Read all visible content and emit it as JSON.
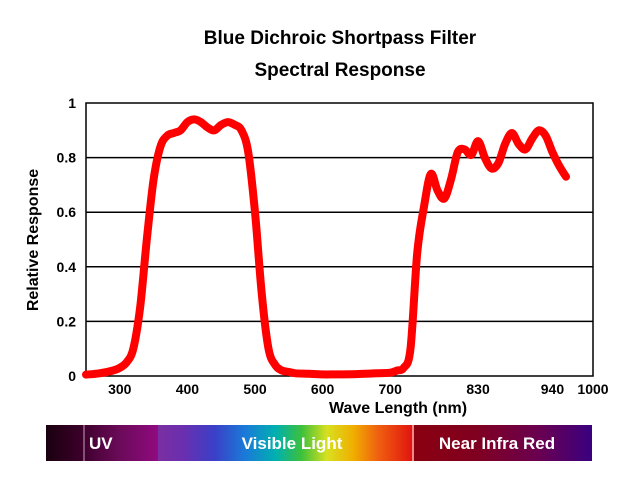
{
  "chart_data": {
    "type": "line",
    "title": [
      "Blue Dichroic Shortpass Filter",
      "Spectral Response"
    ],
    "xlabel": "Wave Length (nm)",
    "ylabel": "Relative Response",
    "xlim": [
      250,
      1000
    ],
    "ylim": [
      0,
      1
    ],
    "xticks": [
      300,
      400,
      500,
      600,
      700,
      830,
      940,
      1000
    ],
    "yticks": [
      0,
      0.2,
      0.4,
      0.6,
      0.8,
      1
    ],
    "ytick_labels": [
      "0",
      "0.2",
      "0.4",
      "0.6",
      "0.8",
      "1"
    ],
    "grid": "horizontal",
    "series": [
      {
        "color": "#ff0000",
        "x": [
          250,
          270,
          290,
          300,
          310,
          320,
          330,
          340,
          350,
          360,
          370,
          380,
          390,
          400,
          410,
          420,
          430,
          440,
          450,
          460,
          470,
          480,
          490,
          500,
          510,
          520,
          530,
          540,
          550,
          560,
          580,
          600,
          620,
          650,
          680,
          700,
          710,
          720,
          730,
          740,
          750,
          760,
          770,
          780,
          790,
          800,
          810,
          820,
          830,
          840,
          850,
          860,
          870,
          880,
          890,
          900,
          910,
          920,
          930,
          940,
          950,
          960
        ],
        "y": [
          0.005,
          0.01,
          0.02,
          0.03,
          0.05,
          0.1,
          0.25,
          0.5,
          0.72,
          0.84,
          0.88,
          0.89,
          0.9,
          0.93,
          0.94,
          0.93,
          0.91,
          0.9,
          0.92,
          0.93,
          0.92,
          0.9,
          0.82,
          0.6,
          0.3,
          0.1,
          0.04,
          0.02,
          0.015,
          0.01,
          0.008,
          0.006,
          0.006,
          0.007,
          0.01,
          0.012,
          0.02,
          0.03,
          0.1,
          0.45,
          0.62,
          0.74,
          0.68,
          0.65,
          0.72,
          0.82,
          0.83,
          0.81,
          0.86,
          0.8,
          0.76,
          0.78,
          0.85,
          0.89,
          0.85,
          0.83,
          0.87,
          0.9,
          0.88,
          0.82,
          0.77,
          0.73
        ]
      }
    ]
  },
  "spectrum_bar": {
    "labels": {
      "uv": "UV",
      "visible": "Visible Light",
      "nir": "Near Infra Red"
    }
  }
}
